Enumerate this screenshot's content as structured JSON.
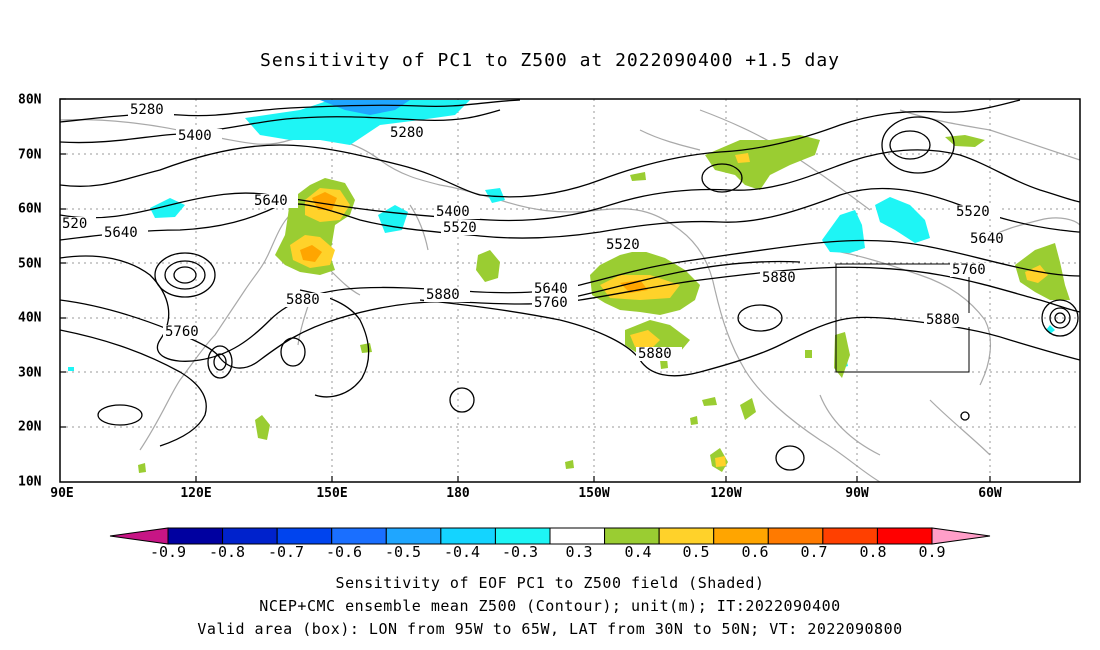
{
  "title": "Sensitivity of PC1 to Z500 at 2022090400 +1.5 day",
  "lat_labels": [
    "80N",
    "70N",
    "60N",
    "50N",
    "40N",
    "30N",
    "20N",
    "10N"
  ],
  "lon_labels": [
    "90E",
    "120E",
    "150E",
    "180",
    "150W",
    "120W",
    "90W",
    "60W"
  ],
  "contour_labels": [
    {
      "text": "5280"
    },
    {
      "text": "5400"
    },
    {
      "text": "5280"
    },
    {
      "text": "520"
    },
    {
      "text": "5640"
    },
    {
      "text": "5640"
    },
    {
      "text": "5400"
    },
    {
      "text": "5520"
    },
    {
      "text": "5520"
    },
    {
      "text": "5880"
    },
    {
      "text": "5760"
    },
    {
      "text": "5880"
    },
    {
      "text": "5640"
    },
    {
      "text": "5760"
    },
    {
      "text": "5880"
    },
    {
      "text": "5880"
    },
    {
      "text": "5520"
    },
    {
      "text": "5640"
    },
    {
      "text": "5760"
    },
    {
      "text": "5880"
    }
  ],
  "colorbar": {
    "labels": [
      "-0.9",
      "-0.8",
      "-0.7",
      "-0.6",
      "-0.5",
      "-0.4",
      "-0.3",
      "0.3",
      "0.4",
      "0.5",
      "0.6",
      "0.7",
      "0.8",
      "0.9"
    ],
    "colors": [
      "#0000a0",
      "#0022cc",
      "#0044ee",
      "#1a6fff",
      "#1fa6ff",
      "#14d4ff",
      "#1ef5f5",
      "#ffffff",
      "#9acd32",
      "#ffd22a",
      "#ffa500",
      "#ff7a00",
      "#ff4000",
      "#ff0000"
    ],
    "low_end_color": "#c71585",
    "high_end_color": "#ff9ec8"
  },
  "captions": {
    "line1": "Sensitivity of EOF PC1 to Z500 field (Shaded)",
    "line2": "NCEP+CMC ensemble mean Z500 (Contour); unit(m); IT:2022090400",
    "line3": "Valid area (box): LON from 95W to 65W, LAT from 30N to 50N; VT: 2022090800"
  }
}
